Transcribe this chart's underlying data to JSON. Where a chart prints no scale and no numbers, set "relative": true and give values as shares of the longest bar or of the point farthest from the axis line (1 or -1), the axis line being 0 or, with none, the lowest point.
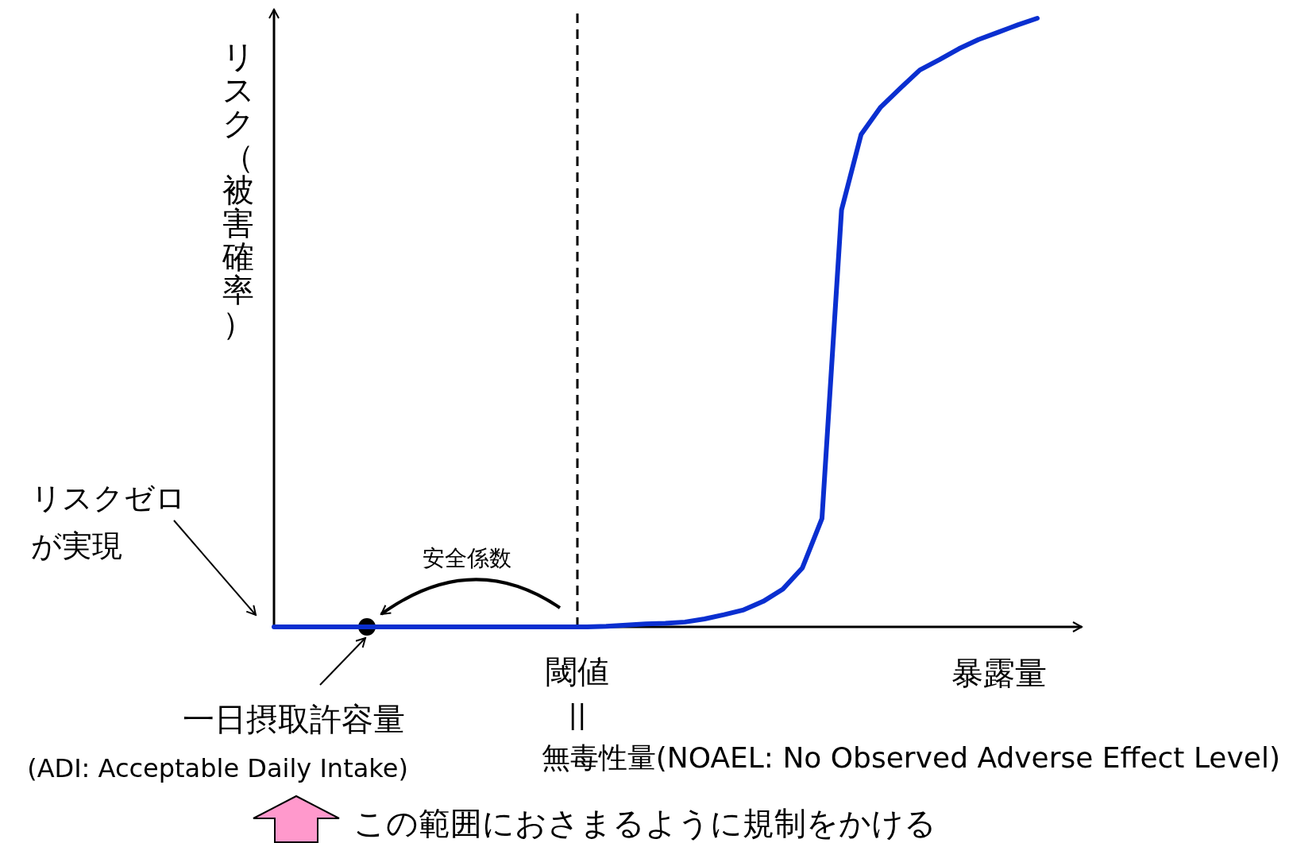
{
  "chart_data": {
    "type": "line",
    "relative": true,
    "xlabel": "暴露量",
    "ylabel": "リスク（被害確率）",
    "categories": [
      null,
      null,
      null,
      null,
      null,
      null,
      null,
      null,
      null,
      null,
      null,
      null,
      null,
      null,
      null,
      null,
      null,
      null,
      null,
      null,
      null,
      null,
      null,
      null,
      null,
      null,
      null,
      null,
      null,
      null,
      null,
      null,
      null,
      null,
      null,
      null,
      null,
      null,
      null,
      null
    ],
    "series": [
      {
        "color": "#0a2fd0",
        "values": [
          0,
          0,
          0,
          0,
          0,
          0,
          0,
          0,
          0,
          0,
          0,
          0,
          0,
          0,
          0,
          0,
          0,
          0.001,
          0.003,
          0.005,
          0.006,
          0.008,
          0.013,
          0.02,
          0.028,
          0.042,
          0.062,
          0.097,
          0.178,
          0.685,
          0.809,
          0.854,
          0.885,
          0.915,
          0.932,
          0.95,
          0.965,
          0.977,
          0.989,
          1
        ]
      }
    ],
    "annotations": [
      "リスクゼロ",
      "が実現",
      "一日摂取許容量",
      "(ADI: Acceptable Daily Intake)",
      "安全係数",
      "閾値",
      "||",
      "無毒性量(NOAEL: No Observed Adverse Effect Level)",
      "この範囲におさまるように規制をかける"
    ]
  }
}
